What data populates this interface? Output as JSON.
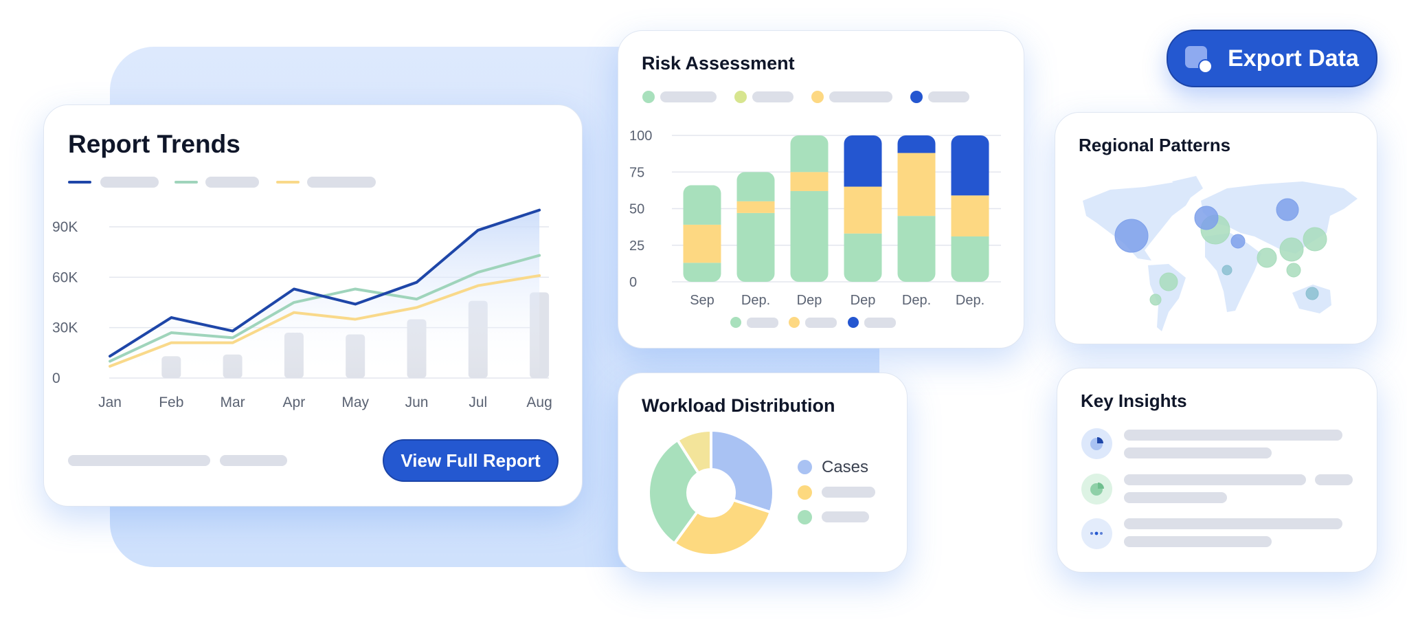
{
  "export_button": {
    "label": "Export Data",
    "icon": "export-icon"
  },
  "report_trends": {
    "title": "Report Trends",
    "cta_label": "View Full Report",
    "chart_data": {
      "type": "line",
      "categories": [
        "Jan",
        "Feb",
        "Mar",
        "Apr",
        "May",
        "Jun",
        "Jul",
        "Aug"
      ],
      "y_ticks": [
        "0",
        "30K",
        "60K",
        "90K"
      ],
      "y_tick_values": [
        0,
        30,
        60,
        90
      ],
      "ylim": [
        0,
        100
      ],
      "grid": true,
      "series": [
        {
          "color": "#1e46a8",
          "values": [
            13,
            36,
            28,
            53,
            44,
            57,
            88,
            100
          ]
        },
        {
          "color": "#9fd4bb",
          "values": [
            10,
            27,
            24,
            45,
            53,
            47,
            63,
            73
          ]
        },
        {
          "color": "#f9d98a",
          "values": [
            7,
            21,
            21,
            39,
            35,
            42,
            55,
            61
          ]
        }
      ],
      "bars": {
        "color": "#dfe2ea",
        "categories": [
          "Feb",
          "Mar",
          "Apr",
          "May",
          "Jun",
          "Jul",
          "Aug"
        ],
        "values": [
          13,
          14,
          27,
          26,
          35,
          46,
          51
        ]
      }
    }
  },
  "risk_assessment": {
    "title": "Risk Assessment",
    "chart_data": {
      "type": "bar",
      "stacked": true,
      "categories": [
        "Sep",
        "Dep.",
        "Dep",
        "Dep",
        "Dep.",
        "Dep."
      ],
      "y_ticks": [
        "0",
        "25",
        "50",
        "75",
        "100"
      ],
      "ylim": [
        0,
        100
      ],
      "grid": true,
      "colors": {
        "green": "#a8e0bc",
        "yellow": "#fdd882",
        "blue": "#2456d0"
      },
      "stacks": [
        [
          {
            "c": "green",
            "v": 13
          },
          {
            "c": "yellow",
            "v": 26
          },
          {
            "c": "green",
            "v": 27
          }
        ],
        [
          {
            "c": "green",
            "v": 47
          },
          {
            "c": "yellow",
            "v": 8
          },
          {
            "c": "green",
            "v": 20
          }
        ],
        [
          {
            "c": "green",
            "v": 62
          },
          {
            "c": "yellow",
            "v": 13
          },
          {
            "c": "green",
            "v": 25
          }
        ],
        [
          {
            "c": "green",
            "v": 33
          },
          {
            "c": "yellow",
            "v": 32
          },
          {
            "c": "blue",
            "v": 35
          }
        ],
        [
          {
            "c": "green",
            "v": 45
          },
          {
            "c": "yellow",
            "v": 43
          },
          {
            "c": "blue",
            "v": 12
          }
        ],
        [
          {
            "c": "green",
            "v": 31
          },
          {
            "c": "yellow",
            "v": 28
          },
          {
            "c": "blue",
            "v": 41
          }
        ]
      ],
      "legend_top_colors": [
        "#a8e0bc",
        "#d7e58f",
        "#fdd882",
        "#2456d0"
      ],
      "legend_bottom_colors": [
        "#a8e0bc",
        "#fdd882",
        "#2456d0"
      ]
    }
  },
  "workload_distribution": {
    "title": "Workload Distribution",
    "chart_data": {
      "type": "pie",
      "donut": true,
      "slices": [
        {
          "label": "Cases",
          "value": 30,
          "color": "#a9c2f3"
        },
        {
          "value": 30,
          "color": "#fdd97f"
        },
        {
          "value": 31,
          "color": "#a8e0bc"
        },
        {
          "value": 9,
          "color": "#f3e49a"
        }
      ]
    },
    "legend": [
      {
        "label": "Cases",
        "color": "#a9c2f3"
      },
      {
        "color": "#fdd97f"
      },
      {
        "color": "#a8e0bc"
      }
    ]
  },
  "regional_patterns": {
    "title": "Regional Patterns",
    "bubble_colors": {
      "blue": "#7ea0ea",
      "green": "#a8dcbc",
      "teal": "#8bbfd0"
    }
  },
  "key_insights": {
    "title": "Key Insights",
    "items": [
      {
        "icon": "pie-chart-icon",
        "color": "#dde8fb"
      },
      {
        "icon": "pie-chart-icon",
        "color": "#ddf3e4"
      },
      {
        "icon": "more-dots-icon",
        "color": "#e3ecfb"
      }
    ]
  }
}
